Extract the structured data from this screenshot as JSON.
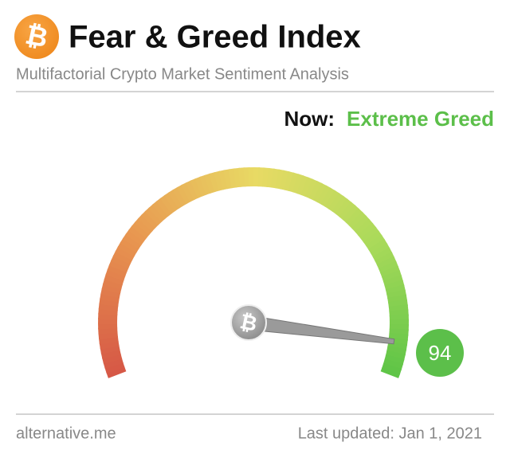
{
  "chart_data": {
    "type": "gauge",
    "logo_symbol": "₿",
    "title": "Fear & Greed Index",
    "subtitle": "Multifactorial Crypto Market Sentiment Analysis",
    "status_label": "Now:",
    "status": "Extreme Greed",
    "value": 94,
    "ylim": [
      0,
      100
    ],
    "color": "#5cbf4a",
    "source": "alternative.me",
    "updated": "Last updated: Jan 1, 2021"
  }
}
